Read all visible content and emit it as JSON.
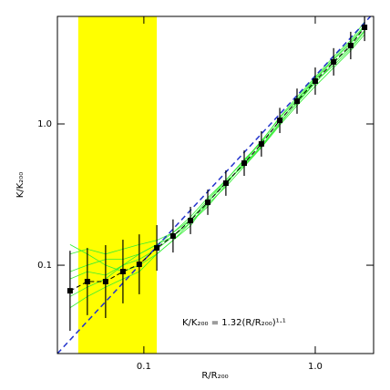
{
  "chart_data": {
    "type": "scatter",
    "x_label": "R/R₂₀₀",
    "y_label": "K/K₂₀₀",
    "annotation": "K/K₂₀₀ =  1.32(R/R₂₀₀)¹·¹",
    "annotation_color": "#6a5acd",
    "log_x": true,
    "log_y": true,
    "xlim": [
      0.0313,
      2.19
    ],
    "ylim": [
      0.0237,
      5.77
    ],
    "xticks": [
      0.1,
      {
        "value": 1,
        "label": "1.0"
      }
    ],
    "yticks": [
      0.1,
      {
        "value": 1,
        "label": "1.0"
      }
    ],
    "shaded_region": {
      "x": [
        0.0414,
        0.119
      ],
      "color": "#ffff00"
    },
    "x": [
      0.0371,
      0.0468,
      0.0598,
      0.0755,
      0.094,
      0.119,
      0.148,
      0.187,
      0.236,
      0.301,
      0.385,
      0.485,
      0.621,
      0.783,
      1.0,
      1.28,
      1.61,
      1.94
    ],
    "profiles": [
      {
        "color": "#33ee33",
        "values": [
          0.12,
          0.13,
          0.12,
          0.13,
          0.14,
          0.15,
          0.17,
          0.21,
          0.28,
          0.38,
          0.52,
          0.7,
          1.02,
          1.4,
          1.95,
          2.7,
          3.5,
          4.6
        ]
      },
      {
        "color": "#33ee33",
        "values": [
          0.09,
          0.1,
          0.11,
          0.11,
          0.12,
          0.14,
          0.17,
          0.22,
          0.3,
          0.4,
          0.55,
          0.76,
          1.1,
          1.5,
          2.1,
          2.9,
          3.8,
          5.0
        ]
      },
      {
        "color": "#33ee33",
        "values": [
          0.05,
          0.06,
          0.07,
          0.08,
          0.09,
          0.12,
          0.15,
          0.2,
          0.27,
          0.36,
          0.5,
          0.68,
          0.98,
          1.35,
          1.85,
          2.5,
          3.3,
          4.3
        ]
      },
      {
        "color": "#33ee33",
        "values": [
          0.08,
          0.09,
          0.085,
          0.1,
          0.11,
          0.13,
          0.16,
          0.2,
          0.26,
          0.37,
          0.54,
          0.75,
          1.12,
          1.55,
          2.15,
          3.0,
          3.9,
          5.3
        ]
      },
      {
        "color": "#33ee33",
        "values": [
          0.14,
          0.12,
          0.1,
          0.09,
          0.1,
          0.12,
          0.15,
          0.19,
          0.28,
          0.39,
          0.51,
          0.69,
          1.0,
          1.42,
          1.98,
          2.6,
          3.4,
          4.5
        ]
      },
      {
        "color": "#33ee33",
        "values": [
          0.06,
          0.07,
          0.08,
          0.1,
          0.12,
          0.14,
          0.16,
          0.21,
          0.29,
          0.4,
          0.56,
          0.74,
          1.05,
          1.47,
          2.05,
          2.85,
          3.7,
          4.9
        ]
      }
    ],
    "series": [
      {
        "color": "#000000",
        "values": [
          0.0659,
          0.0766,
          0.0766,
          0.0902,
          0.1015,
          0.1326,
          0.161,
          0.207,
          0.279,
          0.381,
          0.528,
          0.722,
          1.06,
          1.45,
          2.01,
          2.75,
          3.59,
          4.83
        ],
        "lower": [
          0.0343,
          0.0443,
          0.0423,
          0.0537,
          0.0623,
          0.0914,
          0.123,
          0.166,
          0.227,
          0.31,
          0.429,
          0.587,
          0.862,
          1.18,
          1.61,
          2.2,
          2.87,
          3.86
        ],
        "upper": [
          0.1265,
          0.1325,
          0.1387,
          0.1515,
          0.1654,
          0.1923,
          0.211,
          0.259,
          0.343,
          0.469,
          0.649,
          0.888,
          1.3,
          1.78,
          2.51,
          3.44,
          4.49,
          6.04
        ]
      }
    ],
    "fit": {
      "color": "#2233cc",
      "x": [
        0.0313,
        2.1
      ],
      "values": [
        0.0237,
        5.77
      ]
    }
  }
}
